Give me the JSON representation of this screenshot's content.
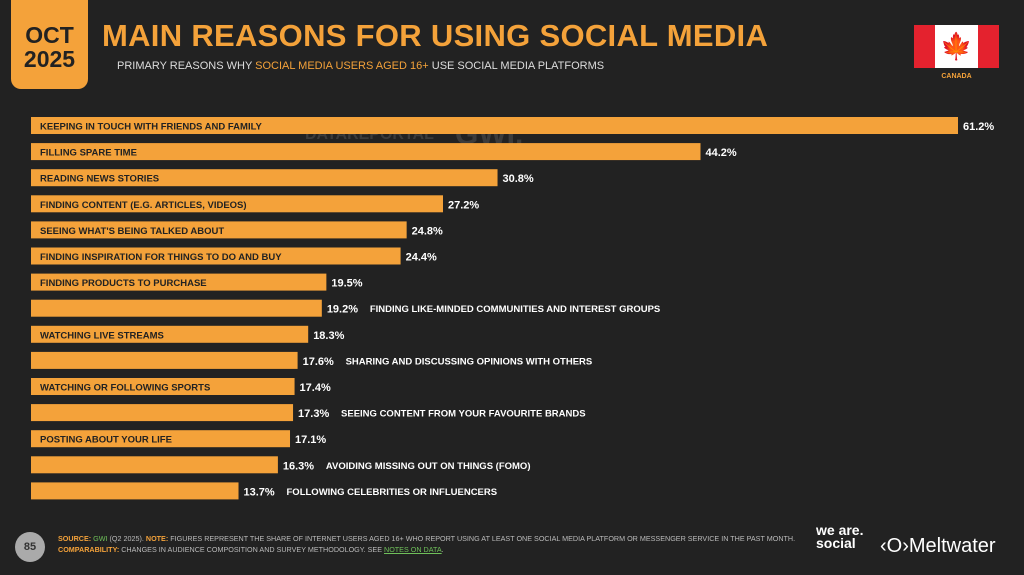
{
  "header": {
    "month": "OCT",
    "year": "2025",
    "title": "MAIN REASONS FOR USING SOCIAL MEDIA",
    "subtitle_pre": "PRIMARY REASONS WHY ",
    "subtitle_hl": "SOCIAL MEDIA USERS AGED 16+",
    "subtitle_post": " USE SOCIAL MEDIA PLATFORMS",
    "country": "CANADA"
  },
  "watermark": {
    "left": "DATAREPORTAL",
    "right": "GWI."
  },
  "footer": {
    "page": "85",
    "source_label": "SOURCE:",
    "source": "GWI",
    "source_rest": " (Q2 2025). ",
    "note_label": "NOTE:",
    "note": " FIGURES REPRESENT THE SHARE OF INTERNET USERS AGED 16+ WHO REPORT USING AT LEAST ONE SOCIAL MEDIA PLATFORM OR MESSENGER SERVICE IN THE PAST MONTH.",
    "comp_label": "COMPARABILITY:",
    "comp": " CHANGES IN AUDIENCE COMPOSITION AND SURVEY METHODOLOGY. SEE ",
    "comp_link": "NOTES ON DATA",
    "comp_end": ".",
    "brand1": "we are. social",
    "brand2": "Meltwater"
  },
  "chart_data": {
    "type": "bar",
    "orientation": "horizontal",
    "unit": "%",
    "bar_color": "#f4a23a",
    "categories": [
      "KEEPING IN TOUCH WITH FRIENDS AND FAMILY",
      "FILLING SPARE TIME",
      "READING NEWS STORIES",
      "FINDING CONTENT (E.G. ARTICLES, VIDEOS)",
      "SEEING WHAT'S BEING TALKED ABOUT",
      "FINDING INSPIRATION FOR THINGS TO DO AND BUY",
      "FINDING PRODUCTS TO PURCHASE",
      "FINDING LIKE-MINDED COMMUNITIES AND INTEREST GROUPS",
      "WATCHING LIVE STREAMS",
      "SHARING AND DISCUSSING OPINIONS WITH OTHERS",
      "WATCHING OR FOLLOWING SPORTS",
      "SEEING CONTENT FROM YOUR FAVOURITE BRANDS",
      "POSTING ABOUT YOUR LIFE",
      "AVOIDING MISSING OUT ON THINGS (FOMO)",
      "FOLLOWING CELEBRITIES OR INFLUENCERS"
    ],
    "values": [
      61.2,
      44.2,
      30.8,
      27.2,
      24.8,
      24.4,
      19.5,
      19.2,
      18.3,
      17.6,
      17.4,
      17.3,
      17.1,
      16.3,
      13.7
    ],
    "labels": [
      "61.2%",
      "44.2%",
      "30.8%",
      "27.2%",
      "24.8%",
      "24.4%",
      "19.5%",
      "19.2%",
      "18.3%",
      "17.6%",
      "17.4%",
      "17.3%",
      "17.1%",
      "16.3%",
      "13.7%"
    ],
    "label_outside": [
      false,
      false,
      false,
      false,
      false,
      false,
      false,
      true,
      false,
      true,
      false,
      true,
      false,
      true,
      true
    ]
  }
}
